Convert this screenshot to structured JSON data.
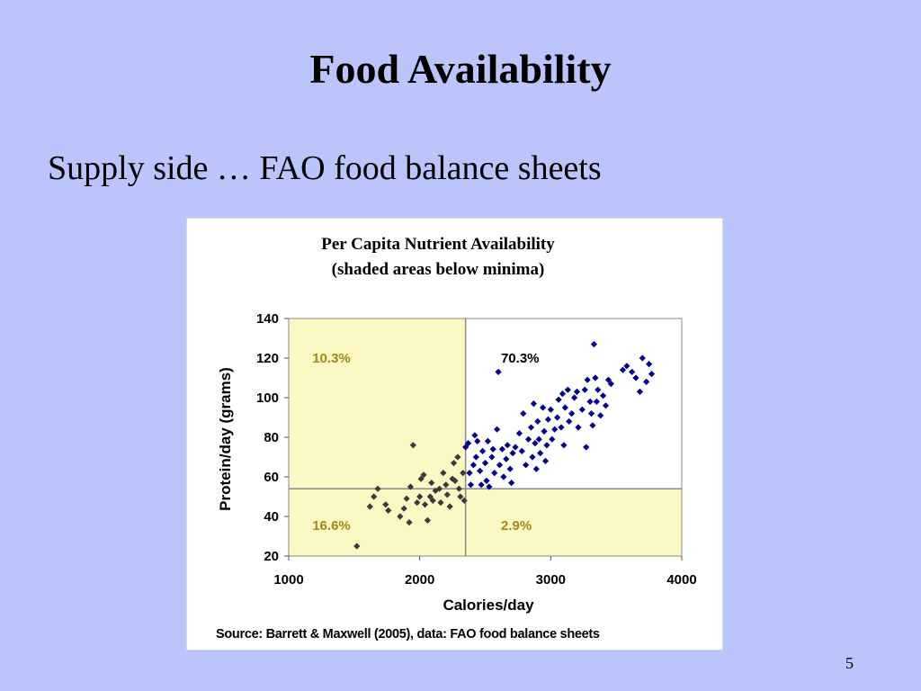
{
  "slide": {
    "title": "Food Availability",
    "subtitle": "Supply side … FAO food balance sheets",
    "page_number": "5"
  },
  "colors": {
    "background": "#bcc4fc",
    "shade": "#fbf8c4",
    "point_above": "#00008b",
    "point_below": "#3a3a3a",
    "pct_shaded": "#a0881a",
    "pct_unshaded": "#000000"
  },
  "chart_data": {
    "type": "scatter",
    "title": "Per Capita Nutrient Availability",
    "subtitle": "(shaded areas below minima)",
    "xlabel": "Calories/day",
    "ylabel": "Protein/day (grams)",
    "source": "Source: Barrett & Maxwell (2005), data: FAO food balance sheets",
    "xlim": [
      1000,
      4000
    ],
    "ylim": [
      20,
      140
    ],
    "xticks": [
      "1000",
      "2000",
      "3000",
      "4000"
    ],
    "yticks": [
      "140",
      "120",
      "100",
      "80",
      "60",
      "40",
      "20"
    ],
    "grid": false,
    "thresholds": {
      "calories": 2350,
      "protein": 54
    },
    "quadrant_labels": [
      {
        "label": "10.3%",
        "quadrant": "top-left",
        "shaded": true
      },
      {
        "label": "70.3%",
        "quadrant": "top-right",
        "shaded": false
      },
      {
        "label": "16.6%",
        "quadrant": "bottom-left",
        "shaded": true
      },
      {
        "label": "2.9%",
        "quadrant": "bottom-right",
        "shaded": true
      }
    ],
    "points": [
      [
        1520,
        25
      ],
      [
        1620,
        45
      ],
      [
        1650,
        50
      ],
      [
        1680,
        54
      ],
      [
        1740,
        46
      ],
      [
        1760,
        43
      ],
      [
        1850,
        40
      ],
      [
        1880,
        44
      ],
      [
        1900,
        49
      ],
      [
        1920,
        37
      ],
      [
        1930,
        55
      ],
      [
        1950,
        76
      ],
      [
        1980,
        47
      ],
      [
        2000,
        50
      ],
      [
        2010,
        59
      ],
      [
        2030,
        61
      ],
      [
        2040,
        46
      ],
      [
        2060,
        38
      ],
      [
        2080,
        50
      ],
      [
        2090,
        57
      ],
      [
        2100,
        48
      ],
      [
        2120,
        53
      ],
      [
        2150,
        54
      ],
      [
        2160,
        47
      ],
      [
        2180,
        62
      ],
      [
        2200,
        56
      ],
      [
        2210,
        51
      ],
      [
        2230,
        45
      ],
      [
        2250,
        59
      ],
      [
        2260,
        67
      ],
      [
        2270,
        58
      ],
      [
        2290,
        70
      ],
      [
        2300,
        54
      ],
      [
        2310,
        50
      ],
      [
        2330,
        62
      ],
      [
        2340,
        48
      ],
      [
        2350,
        75
      ],
      [
        2370,
        77
      ],
      [
        2380,
        62
      ],
      [
        2390,
        56
      ],
      [
        2410,
        66
      ],
      [
        2420,
        81
      ],
      [
        2430,
        70
      ],
      [
        2440,
        78
      ],
      [
        2460,
        63
      ],
      [
        2470,
        56
      ],
      [
        2480,
        73
      ],
      [
        2500,
        67
      ],
      [
        2510,
        58
      ],
      [
        2520,
        78
      ],
      [
        2530,
        55
      ],
      [
        2550,
        70
      ],
      [
        2560,
        74
      ],
      [
        2570,
        62
      ],
      [
        2590,
        84
      ],
      [
        2600,
        113
      ],
      [
        2610,
        66
      ],
      [
        2630,
        74
      ],
      [
        2640,
        60
      ],
      [
        2660,
        69
      ],
      [
        2670,
        76
      ],
      [
        2690,
        64
      ],
      [
        2700,
        57
      ],
      [
        2710,
        72
      ],
      [
        2730,
        75
      ],
      [
        2760,
        82
      ],
      [
        2780,
        73
      ],
      [
        2790,
        92
      ],
      [
        2810,
        66
      ],
      [
        2830,
        79
      ],
      [
        2850,
        85
      ],
      [
        2860,
        70
      ],
      [
        2870,
        97
      ],
      [
        2880,
        77
      ],
      [
        2890,
        64
      ],
      [
        2900,
        88
      ],
      [
        2910,
        79
      ],
      [
        2920,
        72
      ],
      [
        2940,
        95
      ],
      [
        2950,
        83
      ],
      [
        2960,
        68
      ],
      [
        2970,
        76
      ],
      [
        2980,
        89
      ],
      [
        3000,
        94
      ],
      [
        3010,
        79
      ],
      [
        3030,
        84
      ],
      [
        3050,
        90
      ],
      [
        3060,
        99
      ],
      [
        3080,
        85
      ],
      [
        3090,
        102
      ],
      [
        3100,
        76
      ],
      [
        3110,
        95
      ],
      [
        3130,
        104
      ],
      [
        3140,
        88
      ],
      [
        3160,
        92
      ],
      [
        3180,
        100
      ],
      [
        3200,
        103
      ],
      [
        3210,
        85
      ],
      [
        3240,
        94
      ],
      [
        3260,
        104
      ],
      [
        3270,
        75
      ],
      [
        3280,
        109
      ],
      [
        3300,
        98
      ],
      [
        3310,
        92
      ],
      [
        3320,
        86
      ],
      [
        3330,
        127
      ],
      [
        3340,
        110
      ],
      [
        3350,
        98
      ],
      [
        3360,
        104
      ],
      [
        3380,
        91
      ],
      [
        3400,
        101
      ],
      [
        3420,
        96
      ],
      [
        3440,
        109
      ],
      [
        3460,
        107
      ],
      [
        3550,
        114
      ],
      [
        3580,
        116
      ],
      [
        3620,
        113
      ],
      [
        3650,
        110
      ],
      [
        3680,
        103
      ],
      [
        3700,
        120
      ],
      [
        3730,
        108
      ],
      [
        3750,
        117
      ],
      [
        3770,
        112
      ]
    ]
  }
}
